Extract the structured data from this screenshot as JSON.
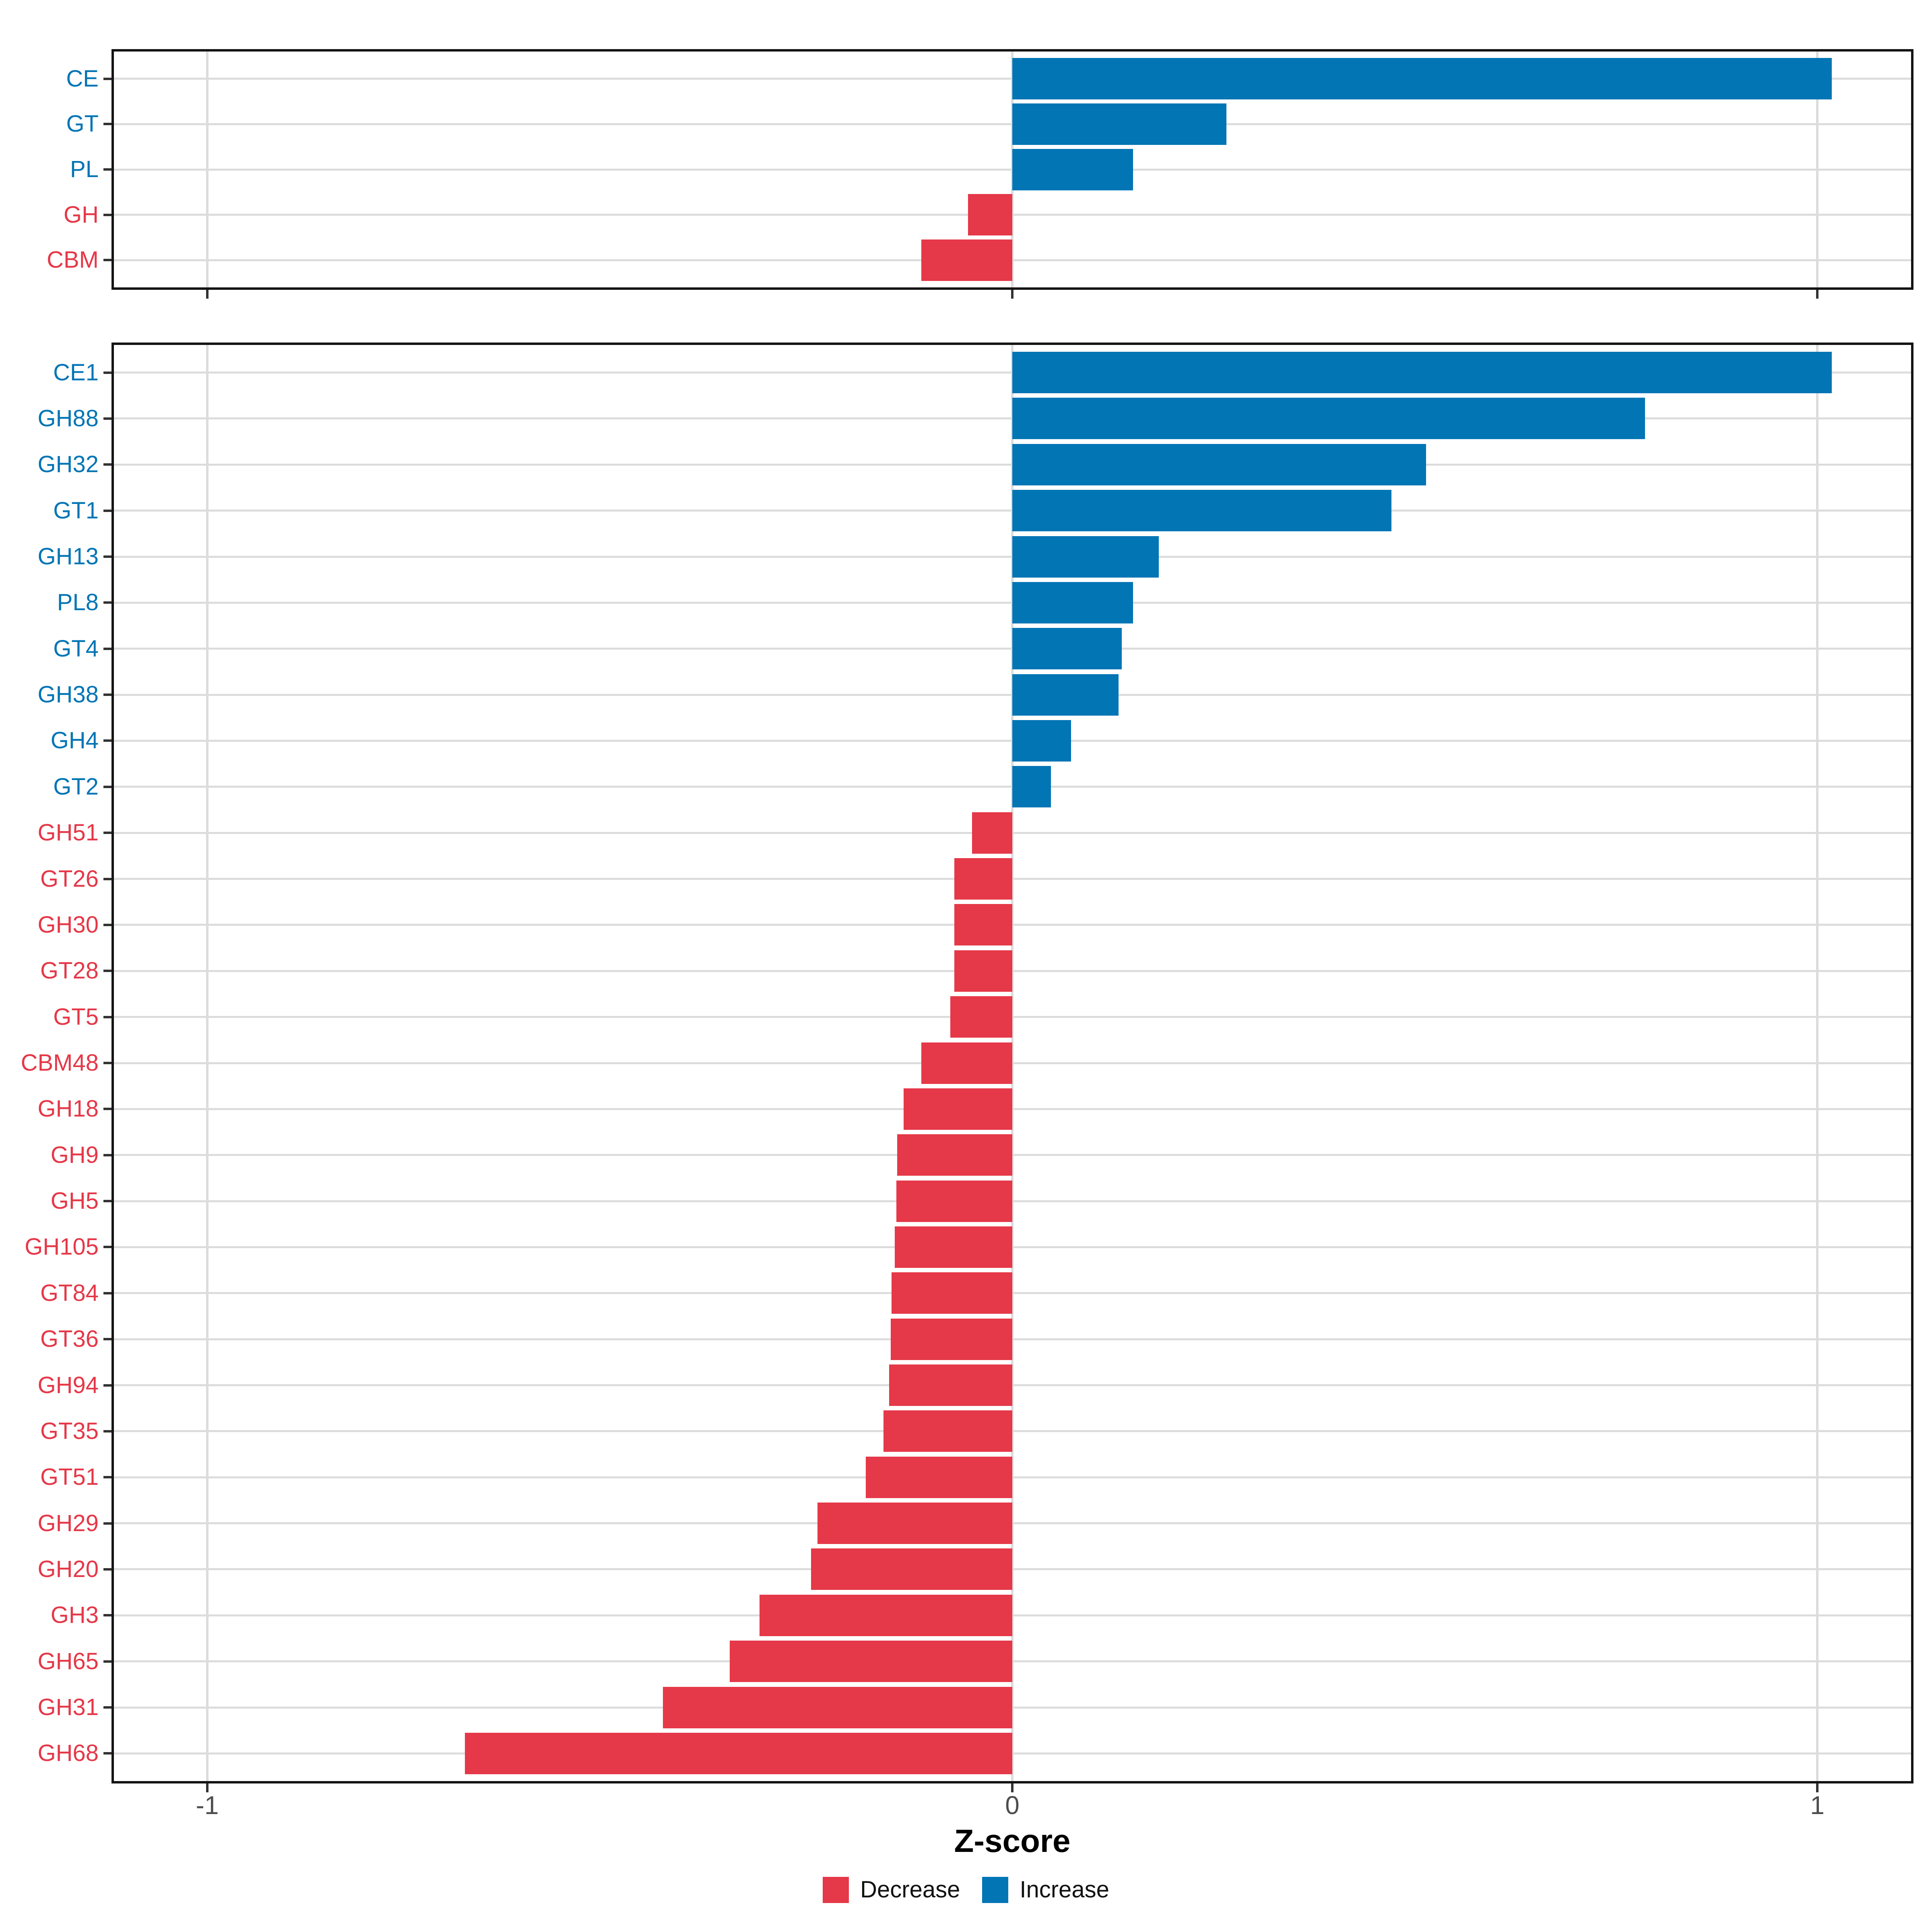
{
  "x_axis": {
    "title": "Z-score",
    "tick_labels": [
      "-1",
      "0",
      "1"
    ],
    "tick_values": [
      -1,
      0,
      1
    ]
  },
  "legend": {
    "items": [
      {
        "label": "Decrease",
        "direction": "decrease"
      },
      {
        "label": "Increase",
        "direction": "increase"
      }
    ]
  },
  "colors": {
    "increase": "#0275B5",
    "decrease": "#E53848",
    "grid": "#DCDCDC",
    "tick": "#333333",
    "axis_text": "#4D4D4D",
    "axis_title": "#000000",
    "panel_border": "#141414",
    "background": "#FFFFFF"
  },
  "chart_data": [
    {
      "type": "bar",
      "orientation": "horizontal",
      "panel": "cazyme-class",
      "title": "",
      "xlabel": "Z-score",
      "ylabel": "",
      "xlim": [
        -1.12,
        1.12
      ],
      "xticks": [
        -1,
        0,
        1
      ],
      "grid": "major-only",
      "legend_position": "none",
      "categories": [
        "CE",
        "GT",
        "PL",
        "GH",
        "CBM"
      ],
      "values": [
        1.018,
        0.266,
        0.15,
        -0.055,
        -0.113
      ],
      "directions": [
        "increase",
        "increase",
        "increase",
        "decrease",
        "decrease"
      ]
    },
    {
      "type": "bar",
      "orientation": "horizontal",
      "panel": "cazyme-family",
      "title": "",
      "xlabel": "Z-score",
      "ylabel": "",
      "xlim": [
        -1.12,
        1.12
      ],
      "xticks": [
        -1,
        0,
        1
      ],
      "grid": "major-only",
      "legend_position": "bottom",
      "categories": [
        "CE1",
        "GH88",
        "GH32",
        "GT1",
        "GH13",
        "PL8",
        "GT4",
        "GH38",
        "GH4",
        "GT2",
        "GH51",
        "GT26",
        "GH30",
        "GT28",
        "GT5",
        "CBM48",
        "GH18",
        "GH9",
        "GH5",
        "GH105",
        "GT84",
        "GT36",
        "GH94",
        "GT35",
        "GT51",
        "GH29",
        "GH20",
        "GH3",
        "GH65",
        "GH31",
        "GH68"
      ],
      "values": [
        1.018,
        0.786,
        0.514,
        0.471,
        0.182,
        0.15,
        0.136,
        0.132,
        0.073,
        0.048,
        -0.05,
        -0.072,
        -0.072,
        -0.072,
        -0.077,
        -0.113,
        -0.135,
        -0.143,
        -0.144,
        -0.146,
        -0.15,
        -0.151,
        -0.153,
        -0.16,
        -0.182,
        -0.242,
        -0.25,
        -0.314,
        -0.351,
        -0.434,
        -0.68
      ],
      "directions": [
        "increase",
        "increase",
        "increase",
        "increase",
        "increase",
        "increase",
        "increase",
        "increase",
        "increase",
        "increase",
        "decrease",
        "decrease",
        "decrease",
        "decrease",
        "decrease",
        "decrease",
        "decrease",
        "decrease",
        "decrease",
        "decrease",
        "decrease",
        "decrease",
        "decrease",
        "decrease",
        "decrease",
        "decrease",
        "decrease",
        "decrease",
        "decrease",
        "decrease",
        "decrease"
      ]
    }
  ]
}
